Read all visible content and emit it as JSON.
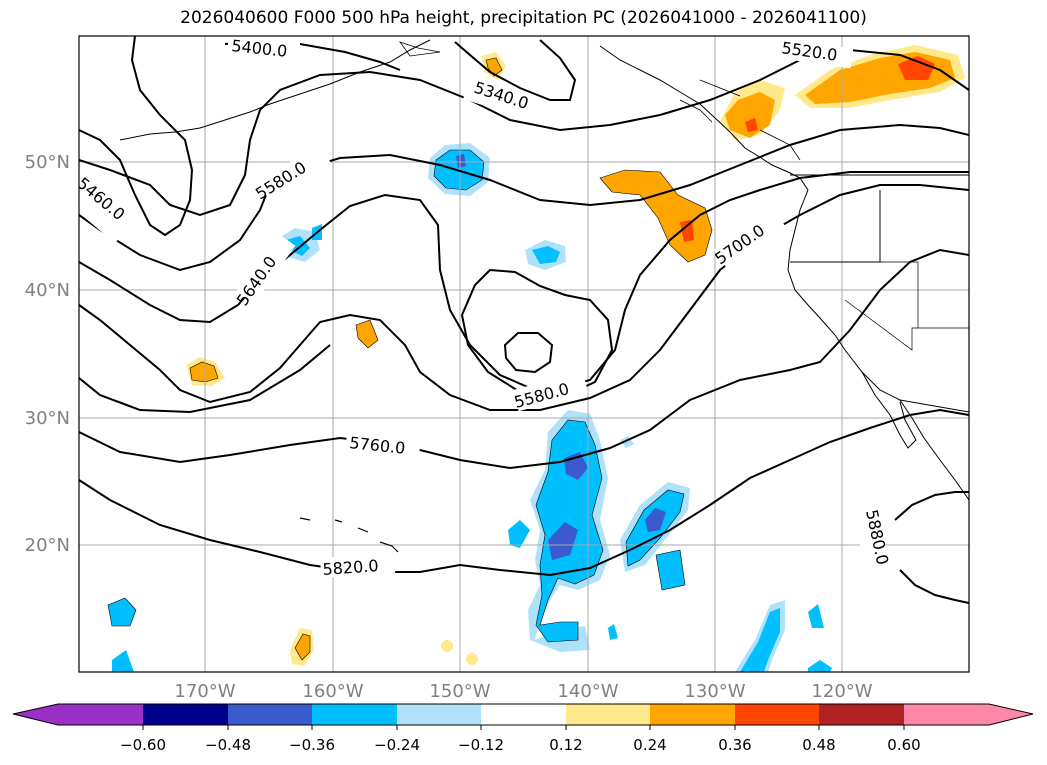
{
  "title": "2026040600 F000 500 hPa height, precipitation PC (2026041000 - 2026041100)",
  "map": {
    "lat_labels": [
      "50°N",
      "40°N",
      "30°N",
      "20°N"
    ],
    "lon_labels": [
      "170°W",
      "160°W",
      "150°W",
      "140°W",
      "130°W",
      "120°W"
    ],
    "grid_color": "#aaaaaa",
    "tick_label_color": "#808080",
    "contour_labels": [
      "5400.0",
      "5340.0",
      "5520.0",
      "5460.0",
      "5580.0",
      "5640.0",
      "5700.0",
      "5580.0",
      "5760.0",
      "5820.0",
      "5880.0"
    ]
  },
  "colorbar": {
    "tick_labels": [
      "−0.60",
      "−0.48",
      "−0.36",
      "−0.24",
      "−0.12",
      "0.12",
      "0.24",
      "0.36",
      "0.48",
      "0.60"
    ],
    "colors": [
      "#9a30c8",
      "#00008b",
      "#3a5acd",
      "#00bfff",
      "#afe2fa",
      "#ffffff",
      "#ffe98a",
      "#ffa500",
      "#ff4500",
      "#b22222",
      "#ff88aa"
    ]
  }
}
